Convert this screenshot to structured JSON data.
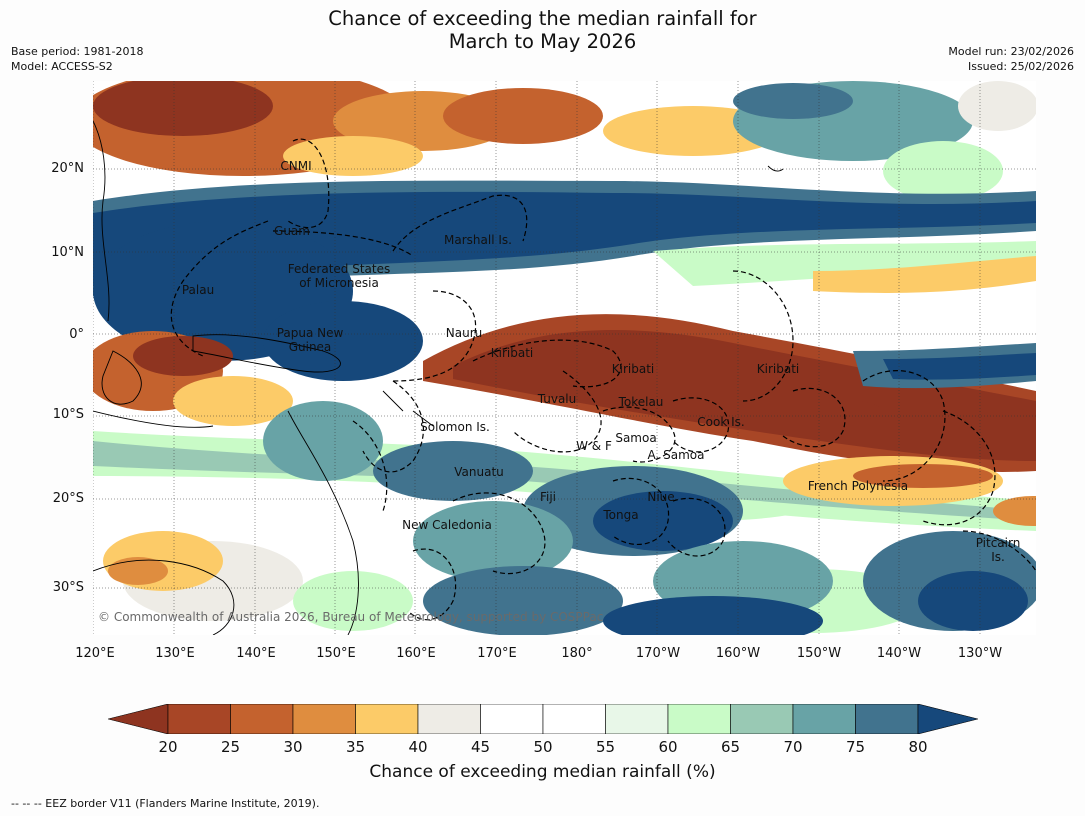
{
  "title": {
    "line1": "Chance of exceeding the median rainfall for",
    "line2": "March to May 2026"
  },
  "meta": {
    "base_period": "Base period: 1981-2018",
    "model": "Model: ACCESS-S2",
    "model_run": "Model run: 23/02/2026",
    "issued": "Issued: 25/02/2026"
  },
  "map": {
    "lat_labels": [
      "20°N",
      "10°N",
      "0°",
      "10°S",
      "20°S",
      "30°S"
    ],
    "lon_labels": [
      "120°E",
      "130°E",
      "140°E",
      "150°E",
      "160°E",
      "170°E",
      "180°",
      "170°W",
      "160°W",
      "150°W",
      "140°W",
      "130°W"
    ],
    "regions": {
      "cnmi": "CNMI",
      "guam": "Guam",
      "marshall": "Marshall Is.",
      "fsm_1": "Federated States",
      "fsm_2": "of Micronesia",
      "palau": "Palau",
      "png_1": "Papua New",
      "png_2": "Guinea",
      "nauru": "Nauru",
      "kiribati_w": "Kiribati",
      "kiribati_c": "Kiribati",
      "kiribati_e": "Kiribati",
      "tuvalu": "Tuvalu",
      "tokelau": "Tokelau",
      "cook": "Cook Is.",
      "solomon": "Solomon Is.",
      "wallis": "W & F",
      "samoa": "Samoa",
      "am_samoa": "A. Samoa",
      "vanuatu": "Vanuatu",
      "fiji": "Fiji",
      "niue": "Niue",
      "tonga": "Tonga",
      "french_poly": "French Polynesia",
      "new_cal": "New Caledonia",
      "pitcairn_1": "Pitcairn",
      "pitcairn_2": "Is."
    },
    "copyright": "© Commonwealth of Australia 2026, Bureau of Meteorology, supported by COSPPac"
  },
  "colorbar": {
    "ticks": [
      "20",
      "25",
      "30",
      "35",
      "40",
      "45",
      "50",
      "55",
      "60",
      "65",
      "70",
      "75",
      "80"
    ],
    "colors": [
      "#8e3420",
      "#a84626",
      "#c4622e",
      "#df8d3f",
      "#fccb68",
      "#eeece6",
      "#ffffff",
      "#ffffff",
      "#e8f7e8",
      "#c9fbc7",
      "#99c9b4",
      "#68a3a6",
      "#41738e",
      "#16487b"
    ],
    "label": "Chance of exceeding median rainfall (%)"
  },
  "footnote": "-- -- -- EEZ border V11 (Flanders Marine Institute, 2019)."
}
